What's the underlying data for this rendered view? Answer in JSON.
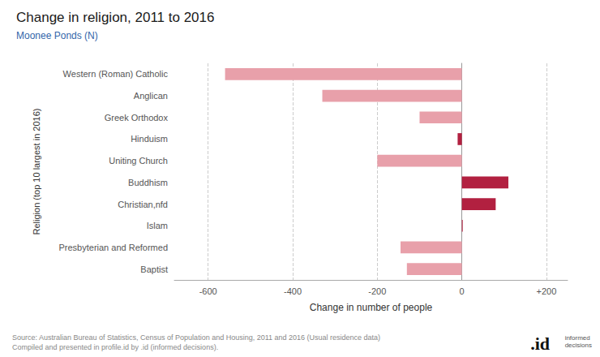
{
  "chart_data": {
    "type": "bar",
    "orientation": "horizontal",
    "title": "Change in religion, 2011 to 2016",
    "subtitle": "Moonee Ponds (N)",
    "xlabel": "Change in number of people",
    "ylabel": "Religion (top 10 largest in 2016)",
    "categories": [
      "Western (Roman) Catholic",
      "Anglican",
      "Greek Orthodox",
      "Hinduism",
      "Uniting Church",
      "Buddhism",
      "Christian,nfd",
      "Islam",
      "Presbyterian and Reformed",
      "Baptist"
    ],
    "values": [
      -560,
      -330,
      -100,
      -10,
      -200,
      110,
      80,
      2,
      -145,
      -130
    ],
    "colors": [
      "#e8a0aa",
      "#e8a0aa",
      "#e8a0aa",
      "#b22040",
      "#e8a0aa",
      "#b22040",
      "#b22040",
      "#b22040",
      "#e8a0aa",
      "#e8a0aa"
    ],
    "xlim": [
      -680,
      250
    ],
    "xticks": [
      -600,
      -400,
      -200,
      0,
      {
        "value": 200,
        "label": "+200"
      }
    ],
    "grid": true,
    "source": "Source: Australian Bureau of Statistics, Census of Population and Housing, 2011 and 2016 (Usual residence data)\nCompiled and presented in profile.id by .id (informed decisions).",
    "annotations": [
      ".id",
      "informed\ndecisions"
    ]
  }
}
